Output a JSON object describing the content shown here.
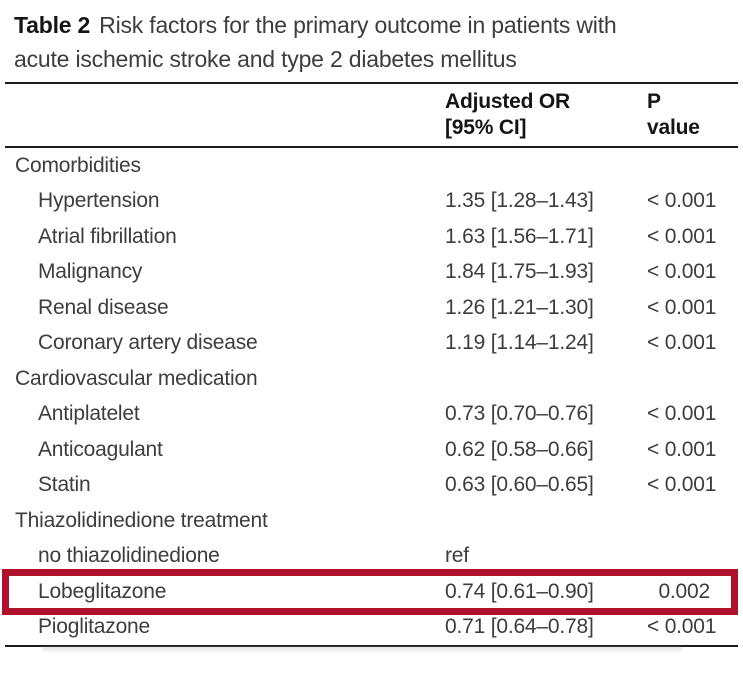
{
  "theme": {
    "highlight": "#b0122d",
    "rule": "#1a1a1a",
    "text": "#3d3d3d",
    "heading": "#151515"
  },
  "title": {
    "label": "Table 2",
    "line1": "Risk factors for the primary outcome in patients with",
    "line2": "acute ischemic stroke and type 2 diabetes mellitus"
  },
  "header": {
    "or_line1": "Adjusted OR",
    "or_line2": "[95% CI]",
    "p_line1": "P",
    "p_line2": "value"
  },
  "rows": [
    {
      "type": "section",
      "label": "Comorbidities"
    },
    {
      "type": "item",
      "label": "Hypertension",
      "or": "1.35 [1.28–1.43]",
      "p": "< 0.001"
    },
    {
      "type": "item",
      "label": "Atrial fibrillation",
      "or": "1.63 [1.56–1.71]",
      "p": "< 0.001"
    },
    {
      "type": "item",
      "label": "Malignancy",
      "or": "1.84 [1.75–1.93]",
      "p": "< 0.001"
    },
    {
      "type": "item",
      "label": "Renal disease",
      "or": "1.26 [1.21–1.30]",
      "p": "< 0.001"
    },
    {
      "type": "item",
      "label": "Coronary artery disease",
      "or": "1.19 [1.14–1.24]",
      "p": "< 0.001"
    },
    {
      "type": "section",
      "label": "Cardiovascular medication"
    },
    {
      "type": "item",
      "label": "Antiplatelet",
      "or": "0.73 [0.70–0.76]",
      "p": "< 0.001"
    },
    {
      "type": "item",
      "label": "Anticoagulant",
      "or": "0.62 [0.58–0.66]",
      "p": "< 0.001"
    },
    {
      "type": "item",
      "label": "Statin",
      "or": "0.63 [0.60–0.65]",
      "p": "< 0.001"
    },
    {
      "type": "section",
      "label": "Thiazolidinedione treatment"
    },
    {
      "type": "item",
      "label": "no thiazolidinedione",
      "or": "ref",
      "p": ""
    },
    {
      "type": "item",
      "label": "Lobeglitazone",
      "or": "0.74 [0.61–0.90]",
      "p": "0.002",
      "highlighted": true
    },
    {
      "type": "item",
      "label": "Pioglitazone",
      "or": "0.71 [0.64–0.78]",
      "p": "< 0.001"
    }
  ]
}
